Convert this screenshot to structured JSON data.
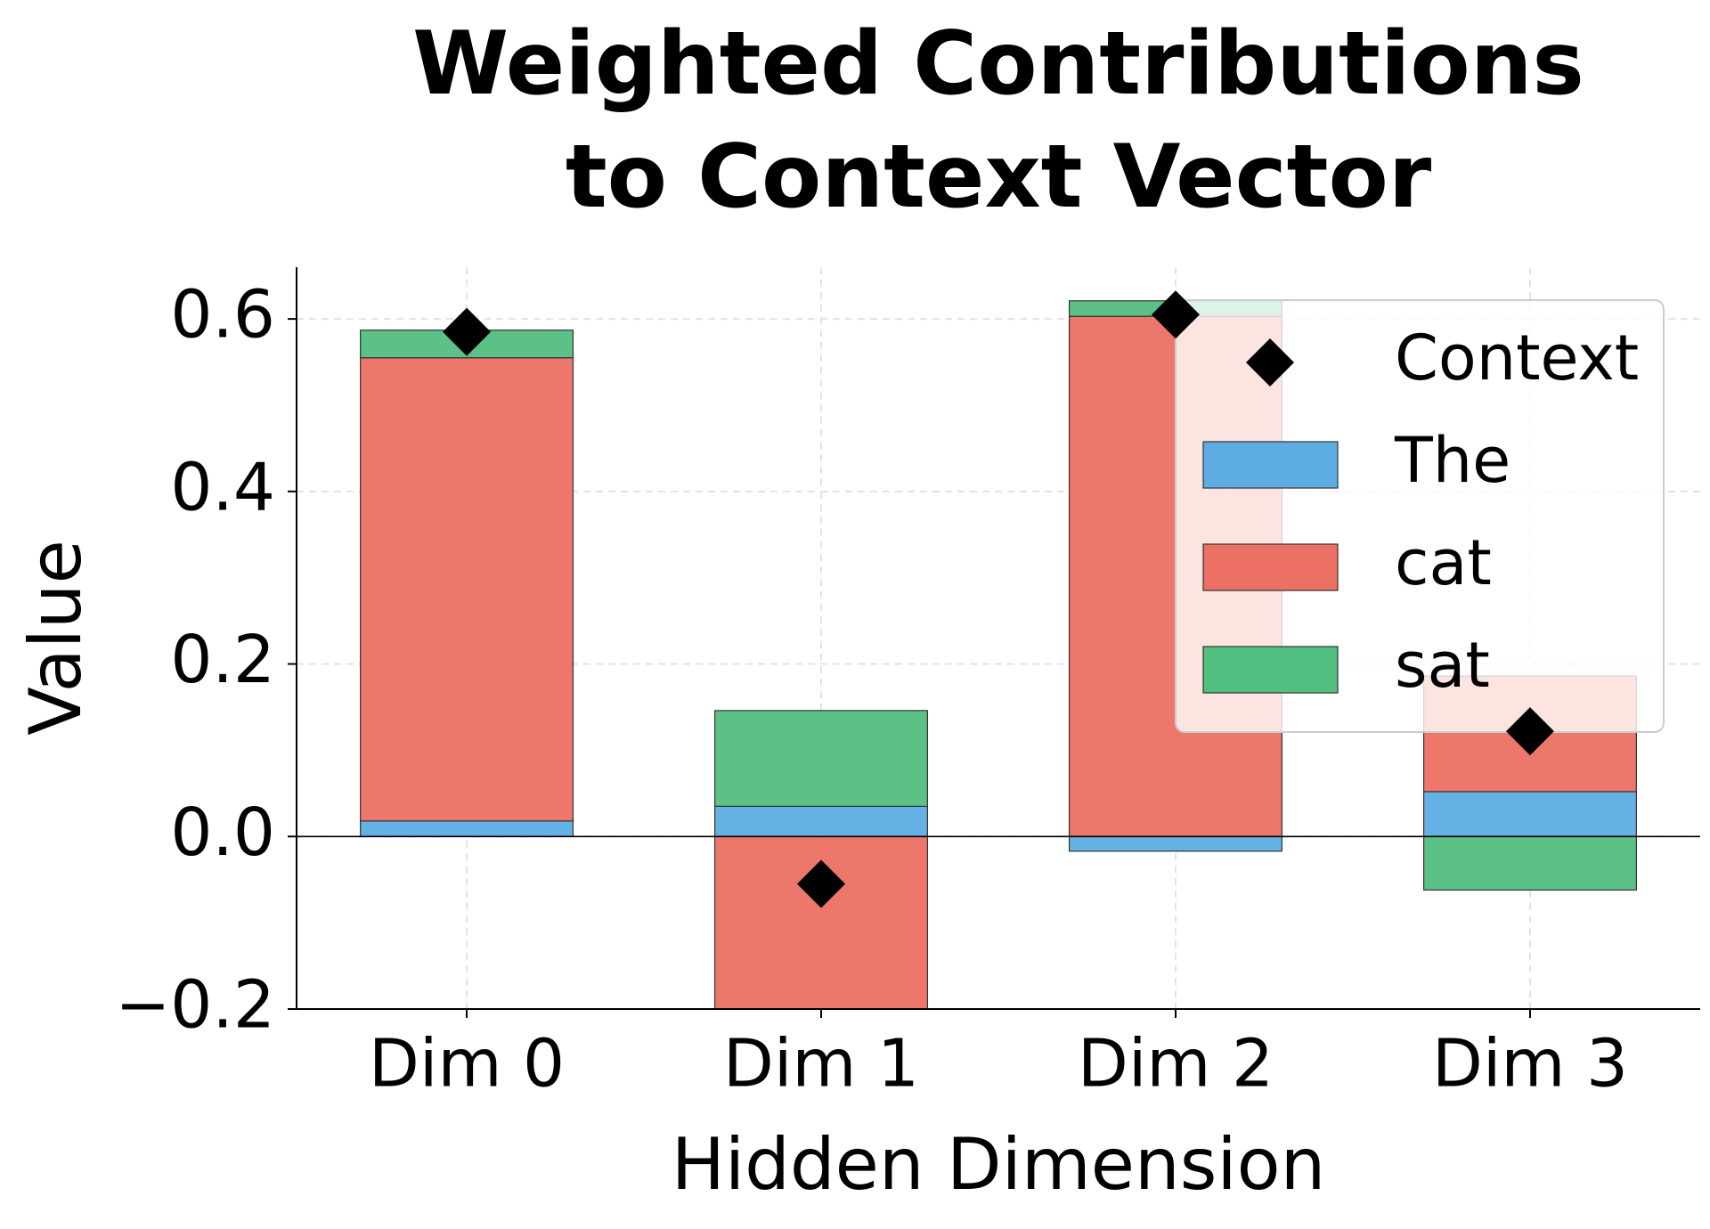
{
  "chart_data": {
    "type": "bar",
    "stacked": true,
    "title": [
      "Weighted Contributions",
      "to Context Vector"
    ],
    "x_label": "Hidden Dimension",
    "y_label": "Value",
    "categories": [
      "Dim 0",
      "Dim 1",
      "Dim 2",
      "Dim 3"
    ],
    "series": [
      {
        "name": "Context",
        "kind": "marker",
        "marker": "diamond",
        "color": "#000000",
        "values": [
          0.585,
          -0.055,
          0.605,
          0.122
        ]
      },
      {
        "name": "The",
        "kind": "bar",
        "color": "#5dade2",
        "values": [
          0.018,
          0.035,
          -0.017,
          0.052
        ]
      },
      {
        "name": "cat",
        "kind": "bar",
        "color": "#ec7063",
        "values": [
          0.537,
          -0.2,
          0.603,
          0.134
        ]
      },
      {
        "name": "sat",
        "kind": "bar",
        "color": "#52be80",
        "values": [
          0.032,
          0.111,
          0.018,
          -0.062
        ]
      }
    ],
    "ylim": [
      -0.2,
      0.66
    ],
    "yticks": [
      {
        "value": -0.2,
        "label": "−0.2"
      },
      {
        "value": 0,
        "label": "0.0"
      },
      0.2,
      0.4,
      0.6
    ],
    "grid": true,
    "legend": "upper right"
  }
}
